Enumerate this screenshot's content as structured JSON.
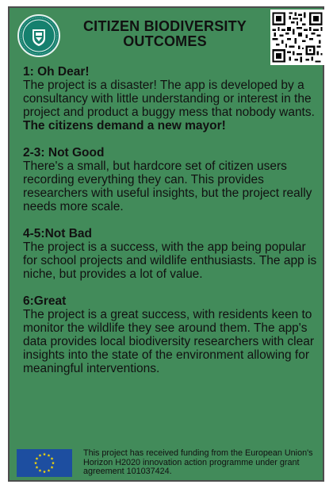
{
  "header": {
    "title_line1": "CITIZEN BIODIVERSITY",
    "title_line2": "OUTCOMES",
    "logo_icon": "university-seal-icon",
    "qr_icon": "qr-code-icon"
  },
  "outcomes": [
    {
      "heading": "1: Oh Dear!",
      "text": "The project is a disaster! The app is developed by a consultancy with little understanding or interest in the project and product a buggy mess that nobody wants.",
      "emphasis": "The citizens demand a new mayor!"
    },
    {
      "heading": "2-3: Not Good",
      "text": "There's a small, but hardcore set of citizen users recording everything they can. This provides researchers with useful insights, but the project really needs more scale."
    },
    {
      "heading": "4-5:Not Bad",
      "text": "The project is a success, with the app being popular for school projects and wildlife enthusiasts. The app is niche, but provides a lot of value."
    },
    {
      "heading": "6:Great",
      "text": "The project is a great success, with residents keen to monitor the wildlife they see around them. The app's data provides local biodiversity researchers with clear insights into the state of the environment allowing for meaningful interventions."
    }
  ],
  "footer": {
    "flag_icon": "eu-flag-icon",
    "funding_text": "This project has received funding from the European Union's Horizon H2020 innovation action programme under grant agreement 101037424."
  },
  "colors": {
    "card_background": "#428b5a",
    "card_border": "#4d4d4d",
    "logo_background": "#15806e",
    "eu_blue": "#1d4ea0",
    "eu_stars": "#ffdd00"
  }
}
